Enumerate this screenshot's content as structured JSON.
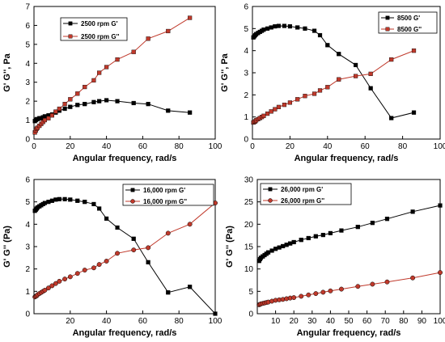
{
  "chart_data": [
    {
      "type": "line",
      "xlabel": "Angular frequency, rad/s",
      "ylabel": "G' G'', Pa",
      "xlim": [
        0,
        100
      ],
      "ylim": [
        0,
        7
      ],
      "xticks": [
        0,
        20,
        40,
        60,
        80,
        100
      ],
      "yticks": [
        0,
        1,
        2,
        3,
        4,
        5,
        6,
        7
      ],
      "legend_position": "top-left",
      "series": [
        {
          "name": "2500 rpm G'",
          "color": "#000000",
          "marker": "square",
          "x": [
            0.5,
            1,
            1.5,
            2,
            3,
            4,
            5,
            6,
            8,
            10,
            12,
            14,
            17,
            20,
            24,
            28,
            33,
            36,
            40,
            46,
            55,
            63,
            74,
            86
          ],
          "y": [
            0.95,
            1.0,
            1.05,
            1.05,
            1.1,
            1.1,
            1.15,
            1.2,
            1.25,
            1.3,
            1.4,
            1.5,
            1.6,
            1.7,
            1.8,
            1.85,
            1.95,
            2.0,
            2.05,
            2.0,
            1.9,
            1.85,
            1.5,
            1.4
          ]
        },
        {
          "name": "2500 rpm G''",
          "color": "#c0392b",
          "marker": "square",
          "x": [
            0.5,
            1,
            1.5,
            2,
            3,
            4,
            5,
            6,
            8,
            10,
            12,
            14,
            17,
            20,
            24,
            28,
            33,
            36,
            40,
            46,
            55,
            63,
            74,
            86
          ],
          "y": [
            0.35,
            0.45,
            0.55,
            0.6,
            0.7,
            0.8,
            0.9,
            1.0,
            1.1,
            1.25,
            1.45,
            1.6,
            1.85,
            2.1,
            2.4,
            2.75,
            3.1,
            3.5,
            3.8,
            4.2,
            4.6,
            5.3,
            5.7,
            6.4
          ]
        }
      ]
    },
    {
      "type": "line",
      "xlabel": "Angular frequency, rad/s",
      "ylabel": "G' G'', Pa",
      "xlim": [
        0,
        100
      ],
      "ylim": [
        0,
        6
      ],
      "xticks": [
        0,
        20,
        40,
        60,
        80,
        100
      ],
      "yticks": [
        0,
        1,
        2,
        3,
        4,
        5,
        6
      ],
      "legend_position": "top-right",
      "series": [
        {
          "name": "8500 G'",
          "color": "#000000",
          "marker": "square",
          "x": [
            0.5,
            1,
            1.5,
            2,
            3,
            4,
            5,
            6,
            8,
            10,
            12,
            14,
            17,
            20,
            24,
            28,
            33,
            36,
            40,
            46,
            55,
            63,
            74,
            86
          ],
          "y": [
            4.6,
            4.65,
            4.7,
            4.75,
            4.8,
            4.85,
            4.9,
            4.95,
            5.0,
            5.05,
            5.1,
            5.12,
            5.12,
            5.1,
            5.05,
            5.0,
            4.9,
            4.7,
            4.25,
            3.85,
            3.35,
            2.3,
            0.95,
            1.2
          ]
        },
        {
          "name": "8500 G''",
          "color": "#c0392b",
          "marker": "square",
          "x": [
            0.5,
            1,
            1.5,
            2,
            3,
            4,
            5,
            6,
            8,
            10,
            12,
            14,
            17,
            20,
            24,
            28,
            33,
            36,
            40,
            46,
            55,
            63,
            74,
            86
          ],
          "y": [
            0.75,
            0.78,
            0.8,
            0.85,
            0.9,
            0.95,
            1.0,
            1.05,
            1.15,
            1.25,
            1.35,
            1.45,
            1.55,
            1.65,
            1.8,
            1.95,
            2.05,
            2.2,
            2.35,
            2.7,
            2.85,
            2.95,
            3.6,
            4.0
          ]
        }
      ]
    },
    {
      "type": "line",
      "xlabel": "Angular frequency, rad/s",
      "ylabel": "G' G'' (Pa)",
      "xlim": [
        0,
        100
      ],
      "ylim": [
        0,
        6
      ],
      "xticks": [
        20,
        40,
        60,
        80,
        100
      ],
      "yticks": [
        0,
        1,
        2,
        3,
        4,
        5,
        6
      ],
      "legend_position": "top-right",
      "series": [
        {
          "name": "16,000 rpm G'",
          "color": "#000000",
          "marker": "square",
          "x": [
            0.5,
            1,
            1.5,
            2,
            3,
            4,
            5,
            6,
            8,
            10,
            12,
            14,
            17,
            20,
            24,
            28,
            33,
            36,
            40,
            46,
            55,
            63,
            74,
            86,
            100
          ],
          "y": [
            4.6,
            4.65,
            4.7,
            4.75,
            4.8,
            4.85,
            4.9,
            4.95,
            5.0,
            5.05,
            5.1,
            5.12,
            5.12,
            5.1,
            5.05,
            5.0,
            4.9,
            4.7,
            4.25,
            3.85,
            3.35,
            2.3,
            0.95,
            1.2,
            0.0
          ]
        },
        {
          "name": "16,000 rpm G''",
          "color": "#c0392b",
          "marker": "circle",
          "x": [
            0.5,
            1,
            1.5,
            2,
            3,
            4,
            5,
            6,
            8,
            10,
            12,
            14,
            17,
            20,
            24,
            28,
            33,
            36,
            40,
            46,
            55,
            63,
            74,
            86,
            100
          ],
          "y": [
            0.75,
            0.78,
            0.8,
            0.85,
            0.9,
            0.95,
            1.0,
            1.05,
            1.15,
            1.25,
            1.35,
            1.45,
            1.55,
            1.65,
            1.8,
            1.95,
            2.05,
            2.2,
            2.35,
            2.7,
            2.85,
            2.95,
            3.6,
            4.0,
            4.95
          ]
        }
      ]
    },
    {
      "type": "line",
      "xlabel": "Angular frequency, rad/s",
      "ylabel": "G' G'' (Pa)",
      "xlim": [
        0,
        100
      ],
      "ylim": [
        0,
        30
      ],
      "xticks": [
        10,
        20,
        30,
        40,
        50,
        60,
        70,
        80,
        90,
        100
      ],
      "yticks": [
        0,
        5,
        10,
        15,
        20,
        25,
        30
      ],
      "legend_position": "top-left",
      "series": [
        {
          "name": "26,000 rpm G'",
          "color": "#000000",
          "marker": "square",
          "x": [
            1,
            1.5,
            2,
            3,
            4,
            5,
            6,
            8,
            10,
            12,
            14,
            16,
            18,
            20,
            24,
            28,
            32,
            36,
            40,
            46,
            55,
            63,
            71,
            85,
            100
          ],
          "y": [
            11.8,
            12.2,
            12.5,
            12.8,
            13.1,
            13.4,
            13.7,
            14.1,
            14.5,
            14.8,
            15.1,
            15.4,
            15.7,
            16.0,
            16.5,
            16.9,
            17.3,
            17.6,
            18.0,
            18.6,
            19.4,
            20.3,
            21.2,
            22.8,
            24.2
          ]
        },
        {
          "name": "26,000 rpm G''",
          "color": "#c0392b",
          "marker": "circle",
          "x": [
            1,
            1.5,
            2,
            3,
            4,
            5,
            6,
            8,
            10,
            12,
            14,
            16,
            18,
            20,
            24,
            28,
            32,
            36,
            40,
            46,
            55,
            63,
            71,
            85,
            100
          ],
          "y": [
            2.0,
            2.1,
            2.2,
            2.3,
            2.4,
            2.5,
            2.6,
            2.8,
            3.0,
            3.1,
            3.2,
            3.35,
            3.5,
            3.6,
            3.9,
            4.2,
            4.5,
            4.8,
            5.1,
            5.5,
            6.1,
            6.6,
            7.1,
            8.0,
            9.2
          ]
        }
      ]
    }
  ]
}
